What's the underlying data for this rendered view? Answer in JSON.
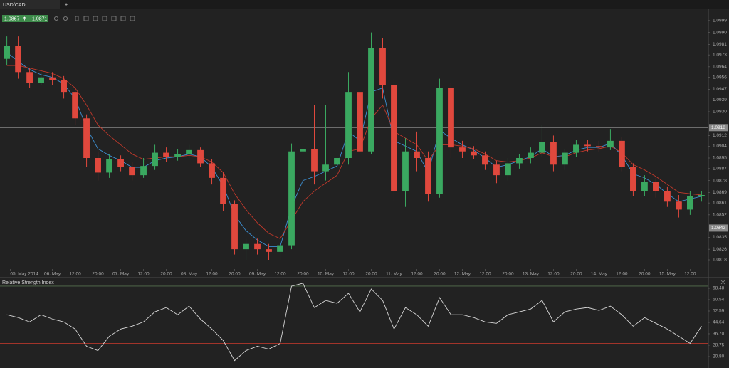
{
  "ui": {
    "tab": "USD/CAD",
    "new_tab": "+",
    "bid": 1.0867,
    "ask": 1.0871
  },
  "chart_data": [
    {
      "type": "candlestick",
      "open": [
        1.097,
        1.098,
        1.096,
        1.0952,
        1.0956,
        1.0954,
        1.0945,
        1.0925,
        1.0895,
        1.0884,
        1.0894,
        1.0888,
        1.0882,
        1.0889,
        1.0899,
        1.0896,
        1.0898,
        1.0901,
        1.0891,
        1.088,
        1.086,
        1.0826,
        1.083,
        1.0826,
        1.0824,
        1.0829,
        1.09,
        1.0902,
        1.0885,
        1.089,
        1.0895,
        1.0945,
        1.09,
        1.0978,
        1.095,
        1.087,
        1.09,
        1.0895,
        1.0868,
        1.0948,
        1.0903,
        1.09,
        1.0897,
        1.089,
        1.0882,
        1.0891,
        1.0895,
        1.0899,
        1.0907,
        1.089,
        1.0899,
        1.0905,
        1.0904,
        1.0903,
        1.0908,
        1.0888,
        1.087,
        1.0877,
        1.087,
        1.0862,
        1.0856,
        1.0866
      ],
      "high": [
        1.0987,
        1.0987,
        1.0963,
        1.096,
        1.096,
        1.0957,
        1.0947,
        1.0928,
        1.09,
        1.0898,
        1.0897,
        1.0892,
        1.0895,
        1.0905,
        1.0903,
        1.0902,
        1.0905,
        1.0903,
        1.0894,
        1.0884,
        1.0863,
        1.0834,
        1.0834,
        1.083,
        1.0832,
        1.0906,
        1.0907,
        1.0935,
        1.0935,
        1.0925,
        1.096,
        1.0955,
        1.099,
        1.0986,
        1.0955,
        1.091,
        1.0915,
        1.09,
        1.0955,
        1.0952,
        1.0908,
        1.0904,
        1.09,
        1.0893,
        1.0895,
        1.0898,
        1.0903,
        1.092,
        1.0912,
        1.0902,
        1.0909,
        1.0909,
        1.0908,
        1.0917,
        1.0911,
        1.0891,
        1.0882,
        1.088,
        1.0873,
        1.0867,
        1.087,
        1.087
      ],
      "low": [
        1.0965,
        1.0955,
        1.0948,
        1.095,
        1.095,
        1.094,
        1.092,
        1.0888,
        1.0878,
        1.088,
        1.0885,
        1.0878,
        1.088,
        1.0886,
        1.0892,
        1.0893,
        1.0895,
        1.0888,
        1.0875,
        1.0855,
        1.0822,
        1.0818,
        1.0822,
        1.0818,
        1.0818,
        1.0826,
        1.089,
        1.0875,
        1.0878,
        1.088,
        1.089,
        1.089,
        1.0898,
        1.094,
        1.0862,
        1.0858,
        1.0885,
        1.0862,
        1.0865,
        1.0895,
        1.0895,
        1.0894,
        1.0886,
        1.0876,
        1.0878,
        1.0887,
        1.0891,
        1.0896,
        1.0885,
        1.0886,
        1.0896,
        1.09,
        1.09,
        1.0901,
        1.0885,
        1.0866,
        1.0866,
        1.0865,
        1.0858,
        1.085,
        1.0852,
        1.0862
      ],
      "close": [
        1.098,
        1.096,
        1.0952,
        1.0956,
        1.0954,
        1.0945,
        1.0925,
        1.0895,
        1.0884,
        1.0894,
        1.0888,
        1.0882,
        1.0889,
        1.0899,
        1.0896,
        1.0898,
        1.0901,
        1.0891,
        1.088,
        1.086,
        1.0826,
        1.083,
        1.0826,
        1.0824,
        1.0829,
        1.09,
        1.0902,
        1.0885,
        1.089,
        1.0895,
        1.0945,
        1.09,
        1.0978,
        1.095,
        1.087,
        1.09,
        1.0895,
        1.0868,
        1.0948,
        1.0903,
        1.09,
        1.0897,
        1.089,
        1.0882,
        1.0891,
        1.0895,
        1.0899,
        1.0907,
        1.089,
        1.0899,
        1.0905,
        1.0904,
        1.0903,
        1.0908,
        1.0888,
        1.087,
        1.0877,
        1.087,
        1.0862,
        1.0856,
        1.0866,
        1.0867
      ],
      "up_color": "#3aa860",
      "down_color": "#e0483d",
      "series": [
        {
          "color": "#3d8fd1",
          "values": [
            1.0975,
            1.0968,
            1.0962,
            1.0958,
            1.0956,
            1.0951,
            1.094,
            1.0918,
            1.0902,
            1.0897,
            1.0893,
            1.0888,
            1.0888,
            1.0893,
            1.0895,
            1.0896,
            1.0898,
            1.0896,
            1.0888,
            1.0874,
            1.0852,
            1.084,
            1.0833,
            1.0828,
            1.0828,
            1.0858,
            1.0878,
            1.0881,
            1.0885,
            1.0889,
            1.0915,
            1.0908,
            1.0945,
            1.0948,
            1.0908,
            1.0904,
            1.09,
            1.0884,
            1.0916,
            1.091,
            1.0905,
            1.0901,
            1.0895,
            1.0888,
            1.089,
            1.0893,
            1.0896,
            1.0902,
            1.0896,
            1.0897,
            1.0901,
            1.0903,
            1.0903,
            1.0906,
            1.0897,
            1.0883,
            1.088,
            1.0875,
            1.0868,
            1.0862,
            1.0864,
            1.0866
          ]
        },
        {
          "color": "#c0392b",
          "values": [
            1.0965,
            1.0965,
            1.0963,
            1.0961,
            1.0959,
            1.0955,
            1.0948,
            1.0935,
            1.092,
            1.0912,
            1.0905,
            1.0898,
            1.0894,
            1.0895,
            1.0896,
            1.0896,
            1.0897,
            1.0896,
            1.0892,
            1.0884,
            1.0868,
            1.0856,
            1.0846,
            1.0838,
            1.0834,
            1.0848,
            1.0862,
            1.087,
            1.0876,
            1.0882,
            1.09,
            1.0902,
            1.0925,
            1.0935,
            1.0915,
            1.091,
            1.0905,
            1.0893,
            1.0905,
            1.0905,
            1.0904,
            1.0902,
            1.0898,
            1.0893,
            1.0892,
            1.0893,
            1.0895,
            1.0899,
            1.0896,
            1.0896,
            1.0899,
            1.0901,
            1.0902,
            1.0904,
            1.0899,
            1.089,
            1.0886,
            1.0881,
            1.0875,
            1.0869,
            1.0868,
            1.0867
          ]
        }
      ],
      "hlines": [
        1.0918,
        1.0842
      ],
      "xlim": [
        -0.6,
        61.6
      ],
      "xticks": [
        {
          "value": 0.3,
          "label": "05. May 2014"
        },
        {
          "value": 4,
          "label": "06. May"
        },
        {
          "value": 6,
          "label": "12:00"
        },
        {
          "value": 8,
          "label": "20:00"
        },
        {
          "value": 10,
          "label": "07. May"
        },
        {
          "value": 12,
          "label": "12:00"
        },
        {
          "value": 14,
          "label": "20:00"
        },
        {
          "value": 16,
          "label": "08. May"
        },
        {
          "value": 18,
          "label": "12:00"
        },
        {
          "value": 20,
          "label": "20:00"
        },
        {
          "value": 22,
          "label": "09. May"
        },
        {
          "value": 24,
          "label": "12:00"
        },
        {
          "value": 26,
          "label": "20:00"
        },
        {
          "value": 28,
          "label": "10. May"
        },
        {
          "value": 30,
          "label": "12:00"
        },
        {
          "value": 32,
          "label": "20:00"
        },
        {
          "value": 34,
          "label": "11. May"
        },
        {
          "value": 36,
          "label": "12:00"
        },
        {
          "value": 38,
          "label": "20:00"
        },
        {
          "value": 40,
          "label": "12. May"
        },
        {
          "value": 42,
          "label": "12:00"
        },
        {
          "value": 44,
          "label": "20:00"
        },
        {
          "value": 46,
          "label": "13. May"
        },
        {
          "value": 48,
          "label": "12:00"
        },
        {
          "value": 50,
          "label": "20:00"
        },
        {
          "value": 52,
          "label": "14. May"
        },
        {
          "value": 54,
          "label": "12:00"
        },
        {
          "value": 56,
          "label": "20:00"
        },
        {
          "value": 58,
          "label": "15. May"
        },
        {
          "value": 60,
          "label": "12:00"
        }
      ],
      "ylim": [
        1.0811,
        1.1007
      ],
      "yticks": [
        1.0999,
        {
          "value": 1.099,
          "label": "1.0990"
        },
        1.0981,
        1.0973,
        1.0964,
        1.0956,
        1.0947,
        1.0939,
        {
          "value": 1.093,
          "label": "1.0930"
        },
        1.0912,
        1.0904,
        1.0895,
        1.0887,
        1.0878,
        1.0869,
        1.0861,
        1.0852,
        1.0835,
        1.0826,
        1.0818
      ]
    },
    {
      "type": "line",
      "title": "Relative Strength Index",
      "series": [
        {
          "color": "#d8d8d8",
          "values": [
            50,
            48,
            45,
            50,
            47,
            45,
            40,
            28,
            25,
            35,
            40,
            42,
            45,
            52,
            55,
            50,
            56,
            47,
            40,
            32,
            18,
            25,
            28,
            26,
            30,
            70,
            72,
            55,
            60,
            58,
            65,
            52,
            68,
            60,
            40,
            55,
            50,
            42,
            62,
            50,
            50,
            48,
            45,
            44,
            50,
            52,
            54,
            60,
            45,
            52,
            54,
            55,
            53,
            56,
            50,
            42,
            48,
            44,
            40,
            35,
            30,
            42
          ]
        }
      ],
      "levels": [
        70,
        30
      ],
      "level_colors": [
        "#55704f",
        "#b5372c"
      ],
      "xlim": [
        -0.6,
        61.6
      ],
      "ylim": [
        12.85,
        74.44
      ],
      "yticks": [
        68.48,
        60.54,
        52.59,
        44.64,
        {
          "value": 36.7,
          "label": "36.70"
        },
        28.75,
        {
          "value": 20.8,
          "label": "20.80"
        }
      ]
    }
  ]
}
